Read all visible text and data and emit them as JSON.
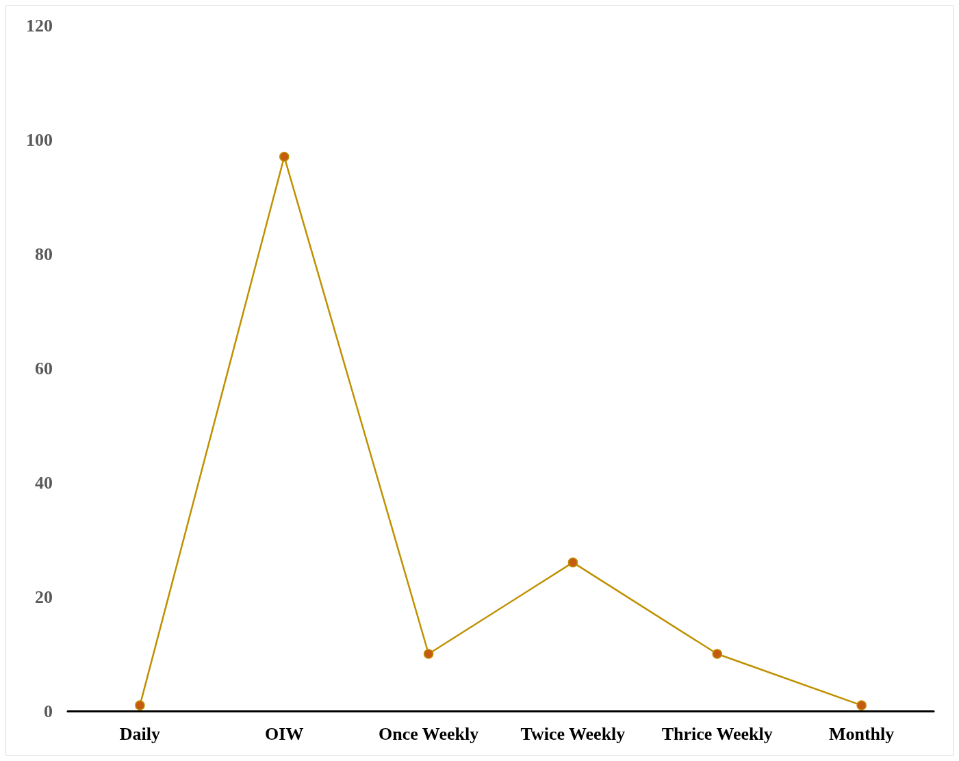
{
  "chart_data": {
    "type": "line",
    "categories": [
      "Daily",
      "OIW",
      "Once Weekly",
      "Twice Weekly",
      "Thrice Weekly",
      "Monthly"
    ],
    "series": [
      {
        "color": "#bf9000",
        "values": [
          1,
          97,
          10,
          26,
          10,
          1
        ]
      }
    ],
    "ylim": [
      0,
      120
    ],
    "yticks": [
      0,
      20,
      40,
      60,
      80,
      100,
      120
    ],
    "grid": false,
    "marker": "circle",
    "line_style": "solid"
  }
}
